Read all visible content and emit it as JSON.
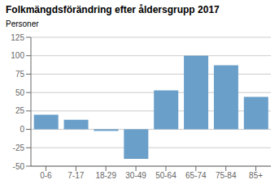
{
  "chart_data": {
    "type": "bar",
    "title": "Folkmängdsförändring efter åldersgrupp 2017",
    "ylabel": "Personer",
    "categories": [
      "0-6",
      "7-17",
      "18-29",
      "30-49",
      "50-64",
      "65-74",
      "75-84",
      "85+"
    ],
    "values": [
      20,
      13,
      -2,
      -40,
      53,
      100,
      87,
      44
    ],
    "color": "#6A9FCA",
    "ylim": [
      -50,
      125
    ],
    "yticks": [
      -50,
      -25,
      0,
      25,
      50,
      75,
      100,
      125
    ],
    "grid": true
  }
}
